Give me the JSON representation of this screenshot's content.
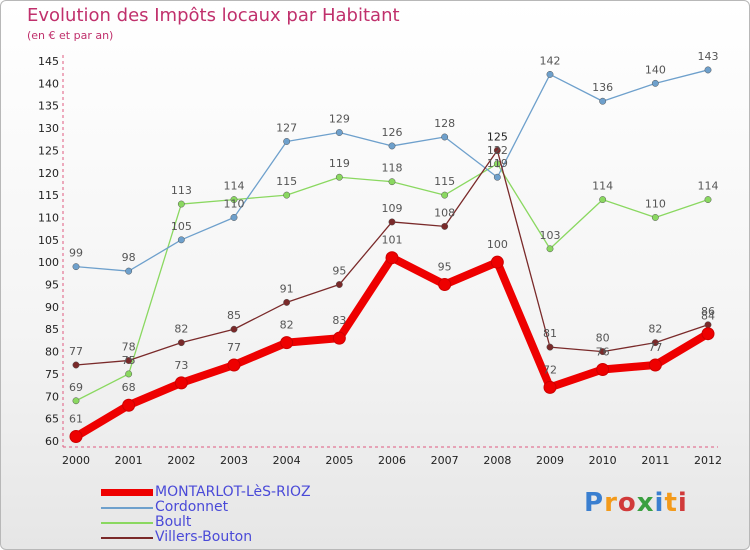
{
  "title": "Evolution des Impôts locaux par Habitant",
  "subtitle": "(en € et par an)",
  "logo_text": "Proxiti",
  "chart_data": {
    "type": "line",
    "title": "Evolution des Impôts locaux par Habitant",
    "xlabel": "",
    "ylabel": "(en € et par an)",
    "ylim": [
      60,
      145
    ],
    "ytick_step": 5,
    "grid": false,
    "x": [
      "2000",
      "2001",
      "2002",
      "2003",
      "2004",
      "2005",
      "2006",
      "2007",
      "2008",
      "2009",
      "2010",
      "2011",
      "2012"
    ],
    "series": [
      {
        "name": "MONTARLOT-LèS-RIOZ",
        "color": "#ee0000",
        "values": [
          61,
          68,
          73,
          77,
          82,
          83,
          101,
          95,
          100,
          72,
          76,
          77,
          84
        ]
      },
      {
        "name": "Cordonnet",
        "color": "#6ea0cc",
        "values": [
          99,
          98,
          105,
          110,
          127,
          129,
          126,
          128,
          119,
          142,
          136,
          140,
          143
        ]
      },
      {
        "name": "Boult",
        "color": "#8ad860",
        "values": [
          69,
          75,
          113,
          114,
          115,
          119,
          118,
          115,
          122,
          103,
          114,
          110,
          114
        ]
      },
      {
        "name": "Villers-Bouton",
        "color": "#7a2a2a",
        "values": [
          77,
          78,
          82,
          85,
          91,
          95,
          109,
          108,
          125,
          81,
          80,
          82,
          86
        ]
      }
    ]
  }
}
